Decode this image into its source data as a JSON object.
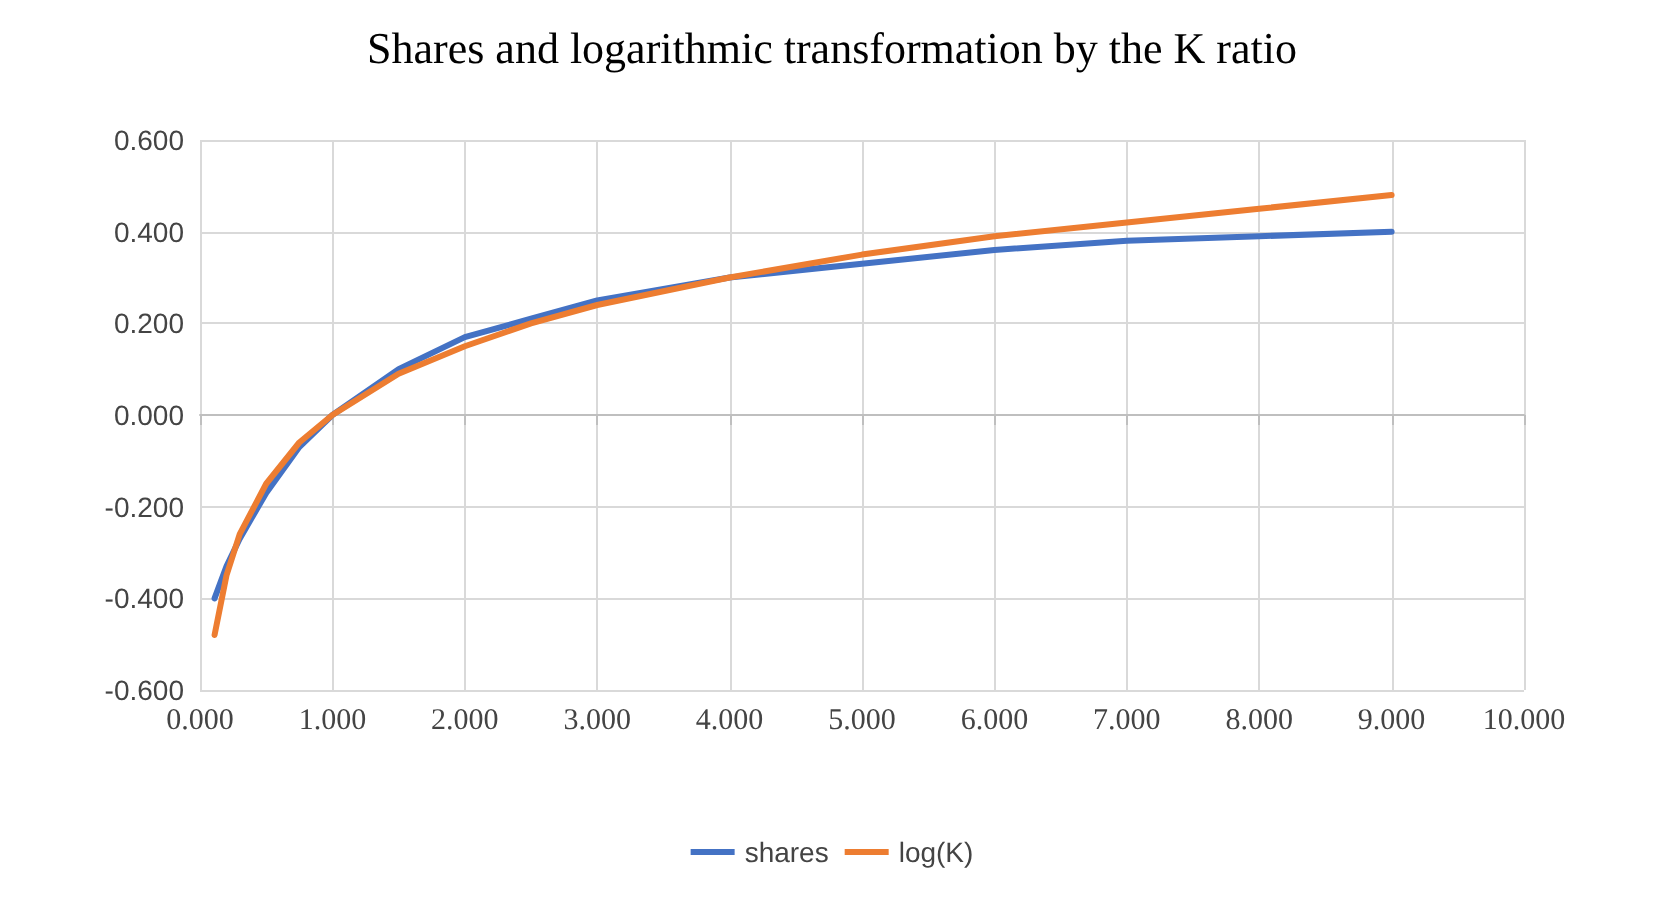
{
  "chart_data": {
    "type": "line",
    "title": "Shares and logarithmic transformation by the K ratio",
    "series": [
      {
        "name": "shares",
        "color": "#4472c4",
        "x": [
          0.11,
          0.2,
          0.3,
          0.5,
          0.75,
          1,
          1.5,
          2,
          2.5,
          3,
          4,
          5,
          6,
          7,
          8,
          9
        ],
        "values": [
          -0.4,
          -0.33,
          -0.27,
          -0.17,
          -0.07,
          0,
          0.1,
          0.17,
          0.21,
          0.25,
          0.3,
          0.33,
          0.36,
          0.38,
          0.39,
          0.4
        ]
      },
      {
        "name": "log(K)",
        "color": "#ed7d31",
        "x": [
          0.11,
          0.2,
          0.3,
          0.5,
          0.75,
          1,
          1.5,
          2,
          2.5,
          3,
          4,
          5,
          6,
          7,
          8,
          9
        ],
        "values": [
          -0.48,
          -0.35,
          -0.26,
          -0.15,
          -0.06,
          0,
          0.09,
          0.15,
          0.2,
          0.24,
          0.3,
          0.35,
          0.39,
          0.42,
          0.45,
          0.48
        ]
      }
    ],
    "xlim": [
      0,
      10
    ],
    "xticks": [
      {
        "value": 0,
        "label": "0.000"
      },
      {
        "value": 1,
        "label": "1.000"
      },
      {
        "value": 2,
        "label": "2.000"
      },
      {
        "value": 3,
        "label": "3.000"
      },
      {
        "value": 4,
        "label": "4.000"
      },
      {
        "value": 5,
        "label": "5.000"
      },
      {
        "value": 6,
        "label": "6.000"
      },
      {
        "value": 7,
        "label": "7.000"
      },
      {
        "value": 8,
        "label": "8.000"
      },
      {
        "value": 9,
        "label": "9.000"
      },
      {
        "value": 10,
        "label": "10.000"
      }
    ],
    "ylim": [
      -0.6,
      0.6
    ],
    "yticks": [
      {
        "value": -0.6,
        "label": "-0.600"
      },
      {
        "value": -0.4,
        "label": "-0.400"
      },
      {
        "value": -0.2,
        "label": "-0.200"
      },
      {
        "value": 0,
        "label": "0.000"
      },
      {
        "value": 0.2,
        "label": "0.200"
      },
      {
        "value": 0.4,
        "label": "0.400"
      },
      {
        "value": 0.6,
        "label": "0.600"
      }
    ],
    "grid": true,
    "legend": "bottom",
    "marker": "none",
    "line_style": "solid"
  }
}
